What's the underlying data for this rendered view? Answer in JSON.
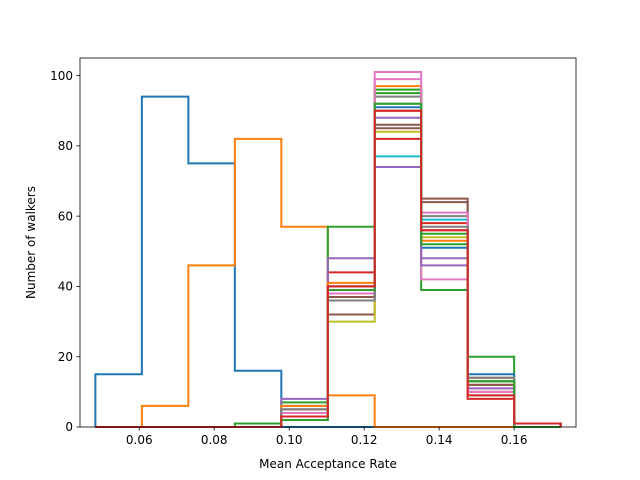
{
  "chart_data": {
    "type": "histogram-step",
    "xlabel": "Mean Acceptance Rate",
    "ylabel": "Number of walkers",
    "xlim": [
      0.0442,
      0.1765
    ],
    "ylim": [
      0,
      105
    ],
    "x_ticks": [
      "0.06",
      "0.08",
      "0.10",
      "0.12",
      "0.14",
      "0.16"
    ],
    "y_ticks": [
      "0",
      "20",
      "40",
      "60",
      "80",
      "100"
    ],
    "bin_edges": [
      0.0483,
      0.0607,
      0.0731,
      0.0855,
      0.0979,
      0.1103,
      0.1228,
      0.1352,
      0.1476,
      0.16,
      0.1724
    ],
    "series": [
      {
        "color": "#1f77b4",
        "counts": [
          15,
          94,
          75,
          16,
          0,
          0,
          0,
          0,
          0,
          0
        ]
      },
      {
        "color": "#ff7f0e",
        "counts": [
          0,
          6,
          46,
          82,
          57,
          9,
          0,
          0,
          0,
          0
        ]
      },
      {
        "color": "#2ca02c",
        "counts": [
          0,
          0,
          0,
          1,
          7,
          57,
          96,
          39,
          20,
          1
        ]
      },
      {
        "color": "#d62728",
        "counts": [
          0,
          0,
          0,
          0,
          3,
          44,
          90,
          56,
          8,
          1
        ]
      },
      {
        "color": "#9467bd",
        "counts": [
          0,
          0,
          0,
          0,
          8,
          48,
          74,
          48,
          12,
          1
        ]
      },
      {
        "color": "#8c564b",
        "counts": [
          0,
          0,
          0,
          0,
          2,
          32,
          85,
          65,
          9,
          1
        ]
      },
      {
        "color": "#e377c2",
        "counts": [
          0,
          0,
          0,
          0,
          5,
          38,
          101,
          42,
          11,
          0
        ]
      },
      {
        "color": "#7f7f7f",
        "counts": [
          0,
          0,
          0,
          0,
          4,
          39,
          94,
          60,
          13,
          0
        ]
      },
      {
        "color": "#bcbd22",
        "counts": [
          0,
          0,
          0,
          0,
          5,
          30,
          84,
          54,
          12,
          1
        ]
      },
      {
        "color": "#17becf",
        "counts": [
          0,
          0,
          0,
          0,
          6,
          40,
          77,
          59,
          14,
          0
        ]
      },
      {
        "color": "#1f77b4",
        "counts": [
          0,
          0,
          0,
          0,
          4,
          37,
          91,
          51,
          15,
          0
        ]
      },
      {
        "color": "#ff7f0e",
        "counts": [
          0,
          0,
          0,
          0,
          6,
          41,
          97,
          53,
          14,
          1
        ]
      },
      {
        "color": "#2ca02c",
        "counts": [
          0,
          0,
          0,
          0,
          3,
          38,
          95,
          55,
          13,
          0
        ]
      },
      {
        "color": "#d62728",
        "counts": [
          0,
          0,
          0,
          0,
          4,
          40,
          82,
          58,
          10,
          1
        ]
      },
      {
        "color": "#9467bd",
        "counts": [
          0,
          0,
          0,
          0,
          5,
          39,
          88,
          46,
          11,
          0
        ]
      },
      {
        "color": "#8c564b",
        "counts": [
          0,
          0,
          0,
          0,
          3,
          37,
          86,
          64,
          12,
          1
        ]
      },
      {
        "color": "#e377c2",
        "counts": [
          0,
          0,
          0,
          0,
          4,
          38,
          99,
          61,
          10,
          0
        ]
      },
      {
        "color": "#7f7f7f",
        "counts": [
          0,
          0,
          0,
          0,
          5,
          36,
          92,
          57,
          14,
          1
        ]
      },
      {
        "color": "#2ca02c",
        "counts": [
          0,
          0,
          0,
          0,
          2,
          39,
          92,
          52,
          13,
          0
        ]
      },
      {
        "color": "#d62728",
        "counts": [
          0,
          0,
          0,
          0,
          3,
          40,
          90,
          56,
          9,
          1
        ]
      }
    ]
  }
}
